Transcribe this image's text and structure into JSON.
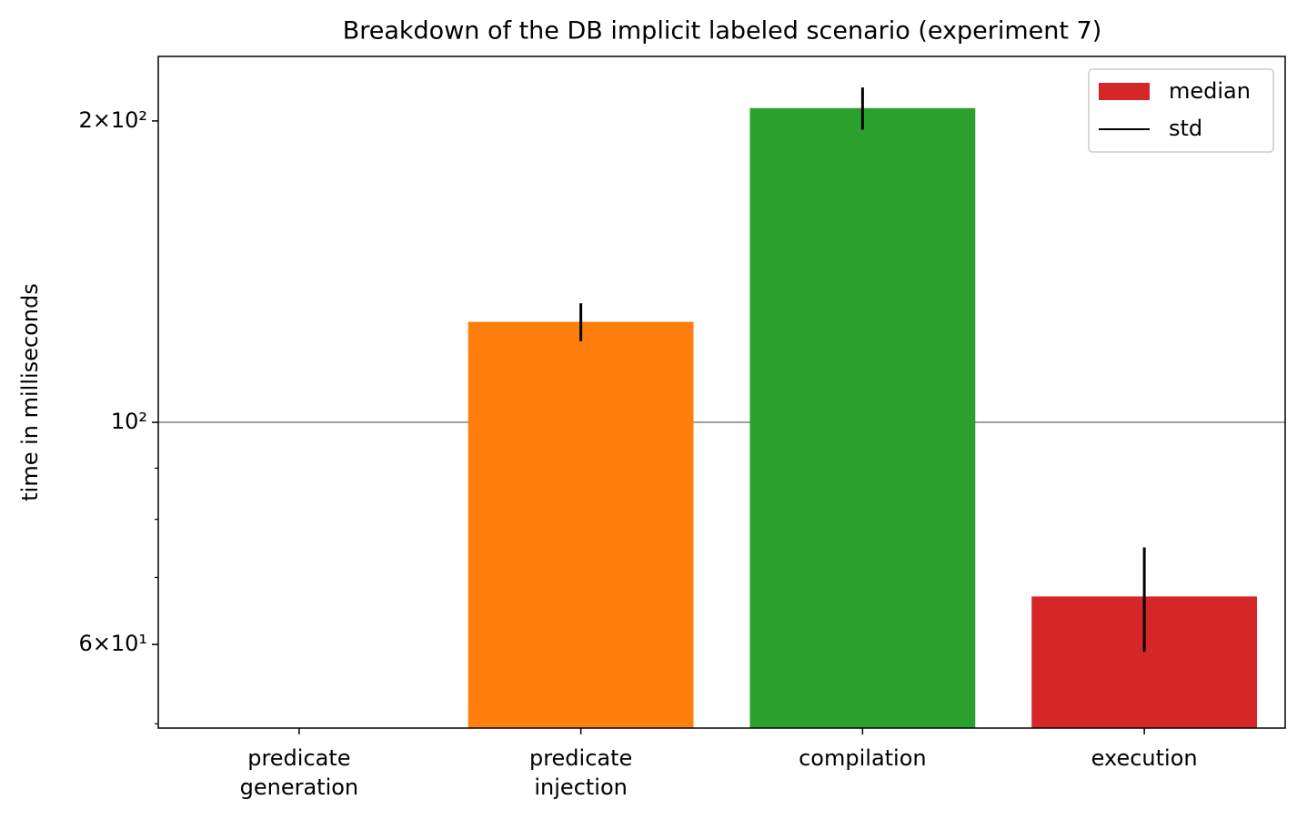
{
  "chart_data": {
    "type": "bar",
    "title": "Breakdown of the DB implicit labeled scenario (experiment 7)",
    "y_label": "time in milliseconds",
    "log_scale_y": true,
    "categories": [
      "predicate\ngeneration",
      "predicate\ninjection",
      "compilation",
      "execution"
    ],
    "series": [
      {
        "name": "median",
        "legend_color": "#d62728",
        "colors": [
          "#1f77b4",
          "#ff7f0e",
          "#2ca02c",
          "#d62728"
        ],
        "values": [
          null,
          126,
          206,
          67
        ]
      }
    ],
    "error": {
      "name": "std",
      "color": "#000000",
      "values": [
        null,
        5.5,
        10,
        8
      ]
    },
    "reference_line": {
      "value": 100,
      "color": "#808080"
    },
    "ylim": [
      49.5,
      232
    ],
    "yticks": [
      {
        "value": 60,
        "label": "6×10¹"
      },
      {
        "value": 100,
        "label": "10²"
      },
      {
        "value": 200,
        "label": "2×10²"
      }
    ],
    "minor_yticks": [
      50,
      70,
      80,
      90
    ],
    "legend_position": "upper right"
  }
}
